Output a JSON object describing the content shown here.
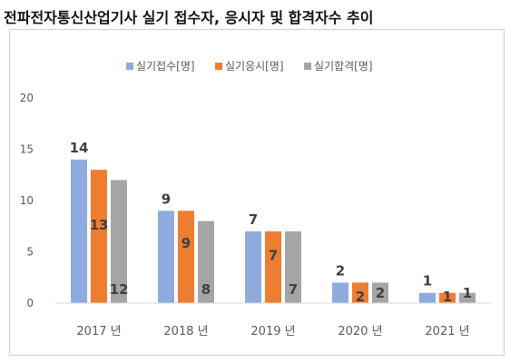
{
  "page": {
    "title": "전파전자통신산업기사 실기 접수자, 응시자 및 합격자수 추이"
  },
  "chart_data": {
    "type": "bar",
    "categories": [
      "2017 년",
      "2018 년",
      "2019 년",
      "2020 년",
      "2021 년"
    ],
    "series": [
      {
        "name": "실기접수[명]",
        "color": "#8faadc",
        "values": [
          14,
          9,
          7,
          2,
          1
        ]
      },
      {
        "name": "실기응시[명]",
        "color": "#ed7d31",
        "values": [
          13,
          9,
          7,
          2,
          1
        ]
      },
      {
        "name": "실기합격[명]",
        "color": "#a5a5a5",
        "values": [
          12,
          8,
          7,
          2,
          1
        ]
      }
    ],
    "ylim": [
      0,
      20
    ],
    "yticks": [
      0,
      5,
      10,
      15,
      20
    ],
    "grid": false,
    "legend_position": "top-center",
    "title": "",
    "xlabel": "",
    "ylabel": ""
  }
}
